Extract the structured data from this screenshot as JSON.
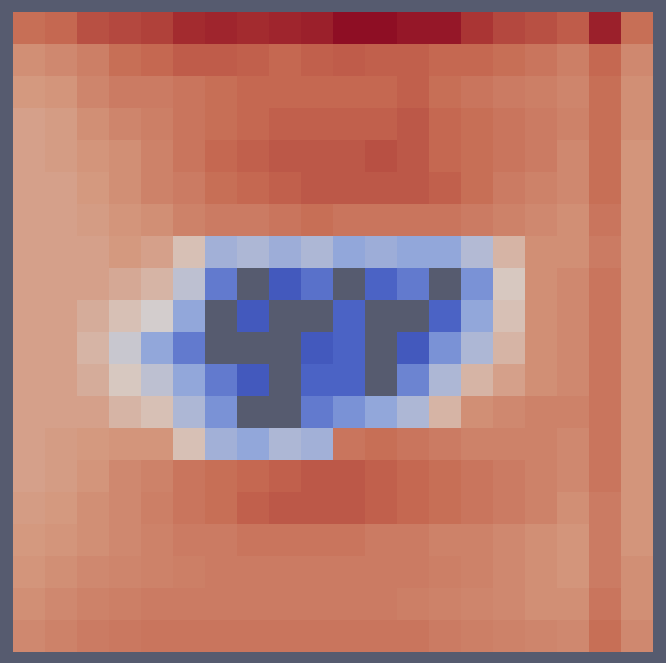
{
  "chart_data": {
    "type": "heatmap",
    "tick_labels": false,
    "zlim": [
      0,
      1
    ],
    "colors": [
      "#26339a",
      "#4860c4",
      "#8aa2dc",
      "#d8d0cc",
      "#d4987e",
      "#c66a52",
      "#a83232",
      "#8a0822"
    ],
    "values": [
      [
        0.7,
        0.72,
        0.78,
        0.8,
        0.82,
        0.88,
        0.9,
        0.88,
        0.9,
        0.92,
        0.98,
        0.98,
        0.95,
        0.95,
        0.85,
        0.8,
        0.78,
        0.75,
        0.92,
        0.7
      ],
      [
        0.6,
        0.62,
        0.65,
        0.7,
        0.72,
        0.75,
        0.75,
        0.74,
        0.72,
        0.74,
        0.75,
        0.74,
        0.74,
        0.72,
        0.72,
        0.7,
        0.68,
        0.65,
        0.72,
        0.62
      ],
      [
        0.57,
        0.58,
        0.63,
        0.66,
        0.66,
        0.68,
        0.7,
        0.72,
        0.72,
        0.72,
        0.72,
        0.72,
        0.74,
        0.7,
        0.68,
        0.66,
        0.65,
        0.63,
        0.7,
        0.6
      ],
      [
        0.55,
        0.56,
        0.6,
        0.63,
        0.65,
        0.68,
        0.7,
        0.72,
        0.74,
        0.74,
        0.74,
        0.74,
        0.76,
        0.72,
        0.7,
        0.68,
        0.66,
        0.64,
        0.7,
        0.6
      ],
      [
        0.55,
        0.56,
        0.58,
        0.6,
        0.64,
        0.68,
        0.72,
        0.74,
        0.76,
        0.76,
        0.76,
        0.78,
        0.76,
        0.72,
        0.7,
        0.68,
        0.66,
        0.62,
        0.7,
        0.58
      ],
      [
        0.55,
        0.55,
        0.57,
        0.6,
        0.64,
        0.66,
        0.7,
        0.72,
        0.74,
        0.76,
        0.76,
        0.76,
        0.76,
        0.74,
        0.7,
        0.66,
        0.64,
        0.62,
        0.7,
        0.58
      ],
      [
        0.55,
        0.55,
        0.56,
        0.58,
        0.6,
        0.64,
        0.66,
        0.66,
        0.68,
        0.7,
        0.68,
        0.68,
        0.68,
        0.68,
        0.66,
        0.64,
        0.62,
        0.6,
        0.68,
        0.58
      ],
      [
        0.55,
        0.55,
        0.55,
        0.57,
        0.55,
        0.47,
        0.33,
        0.35,
        0.32,
        0.35,
        0.3,
        0.32,
        0.3,
        0.3,
        0.36,
        0.5,
        0.6,
        0.6,
        0.66,
        0.58
      ],
      [
        0.55,
        0.55,
        0.55,
        0.53,
        0.5,
        0.38,
        0.2,
        null,
        0.12,
        0.18,
        null,
        0.15,
        0.2,
        null,
        0.25,
        0.45,
        0.6,
        0.62,
        0.68,
        0.58
      ],
      [
        0.55,
        0.55,
        0.52,
        0.47,
        0.42,
        0.3,
        null,
        0.12,
        null,
        null,
        0.15,
        null,
        null,
        0.15,
        0.3,
        0.47,
        0.6,
        0.62,
        0.68,
        0.58
      ],
      [
        0.55,
        0.55,
        0.5,
        0.4,
        0.3,
        0.2,
        null,
        null,
        null,
        0.12,
        0.15,
        null,
        0.12,
        0.25,
        0.35,
        0.5,
        0.6,
        0.62,
        0.68,
        0.58
      ],
      [
        0.55,
        0.55,
        0.52,
        0.45,
        0.38,
        0.3,
        0.2,
        0.12,
        null,
        0.15,
        0.15,
        null,
        0.22,
        0.35,
        0.5,
        0.55,
        0.6,
        0.62,
        0.68,
        0.58
      ],
      [
        0.55,
        0.55,
        0.55,
        0.5,
        0.47,
        0.35,
        0.25,
        null,
        null,
        0.2,
        0.25,
        0.3,
        0.35,
        0.5,
        0.6,
        0.62,
        0.64,
        0.64,
        0.68,
        0.58
      ],
      [
        0.55,
        0.56,
        0.57,
        0.58,
        0.58,
        0.47,
        0.33,
        0.3,
        0.35,
        0.33,
        0.68,
        0.7,
        0.68,
        0.66,
        0.64,
        0.64,
        0.64,
        0.62,
        0.68,
        0.58
      ],
      [
        0.55,
        0.56,
        0.58,
        0.62,
        0.64,
        0.68,
        0.7,
        0.72,
        0.74,
        0.76,
        0.76,
        0.74,
        0.72,
        0.7,
        0.68,
        0.66,
        0.64,
        0.62,
        0.68,
        0.58
      ],
      [
        0.56,
        0.57,
        0.6,
        0.62,
        0.65,
        0.68,
        0.7,
        0.74,
        0.76,
        0.76,
        0.76,
        0.74,
        0.72,
        0.7,
        0.68,
        0.66,
        0.64,
        0.6,
        0.66,
        0.58
      ],
      [
        0.57,
        0.58,
        0.6,
        0.62,
        0.64,
        0.66,
        0.66,
        0.68,
        0.68,
        0.68,
        0.68,
        0.66,
        0.66,
        0.64,
        0.64,
        0.62,
        0.6,
        0.58,
        0.66,
        0.58
      ],
      [
        0.58,
        0.6,
        0.62,
        0.63,
        0.64,
        0.65,
        0.66,
        0.66,
        0.66,
        0.66,
        0.66,
        0.66,
        0.66,
        0.65,
        0.64,
        0.62,
        0.6,
        0.58,
        0.66,
        0.6
      ],
      [
        0.6,
        0.62,
        0.64,
        0.65,
        0.66,
        0.66,
        0.66,
        0.66,
        0.66,
        0.66,
        0.66,
        0.66,
        0.65,
        0.64,
        0.63,
        0.62,
        0.6,
        0.6,
        0.68,
        0.6
      ],
      [
        0.62,
        0.64,
        0.66,
        0.67,
        0.68,
        0.68,
        0.68,
        0.68,
        0.68,
        0.68,
        0.68,
        0.68,
        0.68,
        0.66,
        0.65,
        0.64,
        0.63,
        0.62,
        0.7,
        0.62
      ]
    ]
  }
}
